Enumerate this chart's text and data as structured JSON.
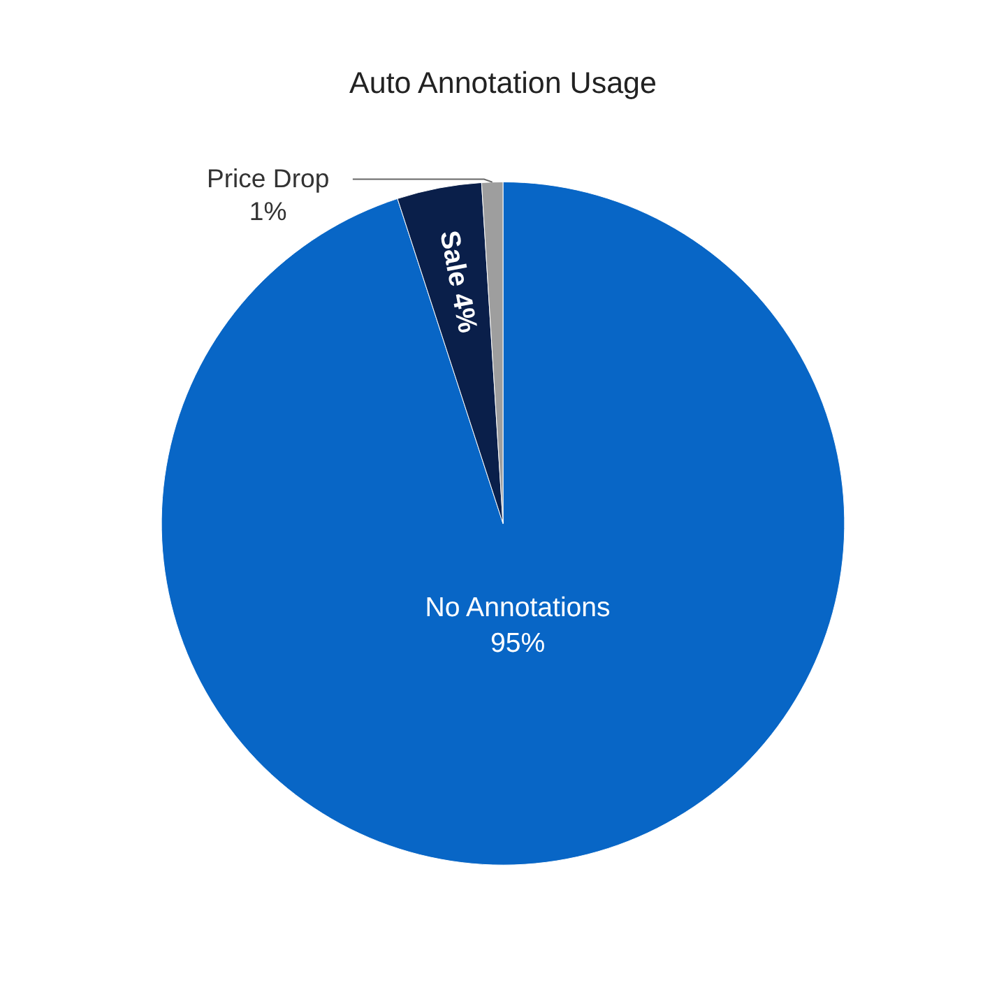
{
  "chart_data": {
    "type": "pie",
    "title": "Auto Annotation Usage",
    "categories": [
      "No Annotations",
      "Sale",
      "Price Drop"
    ],
    "values": [
      95,
      4,
      1
    ],
    "value_labels": [
      "95%",
      "4%",
      "1%"
    ],
    "colors": [
      "#0866c6",
      "#0a1f4a",
      "#9e9e9e"
    ]
  }
}
